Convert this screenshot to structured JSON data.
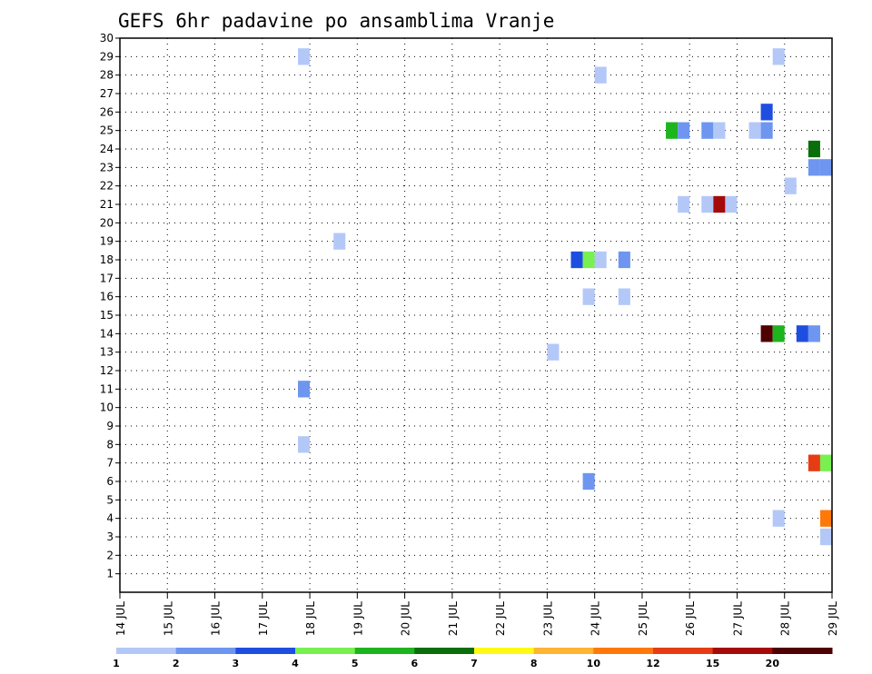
{
  "chart_data": {
    "type": "heatmap",
    "title": "GEFS 6hr padavine po ansamblima Vranje",
    "xlabel": "",
    "ylabel": "",
    "x_tick_labels": [
      "14 JUL",
      "15 JUL",
      "16 JUL",
      "17 JUL",
      "18 JUL",
      "19 JUL",
      "20 JUL",
      "21 JUL",
      "22 JUL",
      "23 JUL",
      "24 JUL",
      "25 JUL",
      "26 JUL",
      "27 JUL",
      "28 JUL",
      "29 JUL"
    ],
    "y_tick_labels": [
      "1",
      "2",
      "3",
      "4",
      "5",
      "6",
      "7",
      "8",
      "9",
      "10",
      "11",
      "12",
      "13",
      "14",
      "15",
      "16",
      "17",
      "18",
      "19",
      "20",
      "21",
      "22",
      "23",
      "24",
      "25",
      "26",
      "27",
      "28",
      "29",
      "30"
    ],
    "xlim": [
      "14 JUL",
      "29 JUL"
    ],
    "ylim": [
      0,
      30
    ],
    "grid": true,
    "legend_position": "bottom",
    "legend": {
      "labels": [
        "1",
        "2",
        "3",
        "4",
        "5",
        "6",
        "7",
        "8",
        "10",
        "12",
        "15",
        "20"
      ],
      "colors": [
        "#b4c8f8",
        "#6e96f0",
        "#1e4ee0",
        "#78f050",
        "#1eb41e",
        "#0a6e0a",
        "#fffa14",
        "#ffb432",
        "#ff780a",
        "#e63c14",
        "#a50a0a",
        "#500000"
      ]
    },
    "cells": [
      {
        "member": 29,
        "time": "17 JUL 18Z",
        "value": 1
      },
      {
        "member": 29,
        "time": "27 JUL 18Z",
        "value": 1
      },
      {
        "member": 28,
        "time": "24 JUL 00Z",
        "value": 1
      },
      {
        "member": 26,
        "time": "27 JUL 12Z",
        "value": 3
      },
      {
        "member": 25,
        "time": "25 JUL 12Z",
        "value": 5
      },
      {
        "member": 25,
        "time": "25 JUL 18Z",
        "value": 2
      },
      {
        "member": 25,
        "time": "26 JUL 06Z",
        "value": 2
      },
      {
        "member": 25,
        "time": "26 JUL 12Z",
        "value": 1
      },
      {
        "member": 25,
        "time": "27 JUL 06Z",
        "value": 1
      },
      {
        "member": 25,
        "time": "27 JUL 12Z",
        "value": 2
      },
      {
        "member": 24,
        "time": "28 JUL 12Z",
        "value": 6
      },
      {
        "member": 23,
        "time": "28 JUL 12Z",
        "value": 2
      },
      {
        "member": 23,
        "time": "28 JUL 18Z",
        "value": 2
      },
      {
        "member": 22,
        "time": "28 JUL 00Z",
        "value": 1
      },
      {
        "member": 21,
        "time": "25 JUL 18Z",
        "value": 1
      },
      {
        "member": 21,
        "time": "26 JUL 06Z",
        "value": 1
      },
      {
        "member": 21,
        "time": "26 JUL 12Z",
        "value": 15
      },
      {
        "member": 21,
        "time": "26 JUL 18Z",
        "value": 1
      },
      {
        "member": 19,
        "time": "18 JUL 12Z",
        "value": 1
      },
      {
        "member": 18,
        "time": "23 JUL 12Z",
        "value": 3
      },
      {
        "member": 18,
        "time": "23 JUL 18Z",
        "value": 4
      },
      {
        "member": 18,
        "time": "24 JUL 00Z",
        "value": 1
      },
      {
        "member": 18,
        "time": "24 JUL 12Z",
        "value": 2
      },
      {
        "member": 16,
        "time": "23 JUL 18Z",
        "value": 1
      },
      {
        "member": 16,
        "time": "24 JUL 12Z",
        "value": 1
      },
      {
        "member": 14,
        "time": "27 JUL 12Z",
        "value": 20
      },
      {
        "member": 14,
        "time": "27 JUL 18Z",
        "value": 5
      },
      {
        "member": 14,
        "time": "28 JUL 06Z",
        "value": 3
      },
      {
        "member": 14,
        "time": "28 JUL 12Z",
        "value": 2
      },
      {
        "member": 13,
        "time": "23 JUL 00Z",
        "value": 1
      },
      {
        "member": 11,
        "time": "17 JUL 18Z",
        "value": 2
      },
      {
        "member": 8,
        "time": "17 JUL 18Z",
        "value": 1
      },
      {
        "member": 7,
        "time": "28 JUL 12Z",
        "value": 12
      },
      {
        "member": 7,
        "time": "28 JUL 18Z",
        "value": 4
      },
      {
        "member": 6,
        "time": "23 JUL 18Z",
        "value": 2
      },
      {
        "member": 4,
        "time": "27 JUL 18Z",
        "value": 1
      },
      {
        "member": 4,
        "time": "28 JUL 18Z",
        "value": 10
      },
      {
        "member": 3,
        "time": "28 JUL 18Z",
        "value": 1
      }
    ]
  }
}
